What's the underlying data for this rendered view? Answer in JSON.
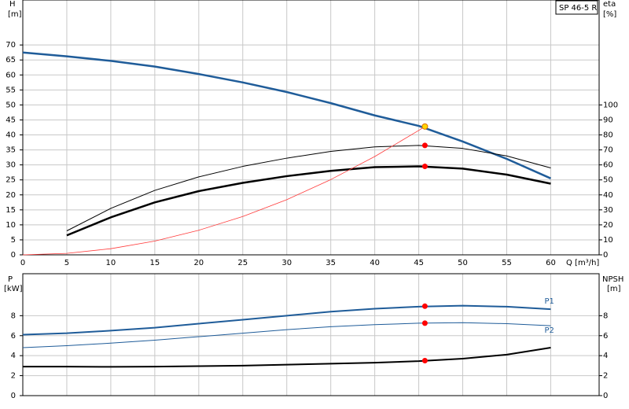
{
  "chart_data": [
    {
      "type": "line",
      "label_box": "SP 46-5 R",
      "y_label": "H",
      "y_unit": "[m]",
      "y2_label": "eta",
      "y2_unit": "[%]",
      "x_label": "Q [m³/h]",
      "xlim": [
        0,
        65.5
      ],
      "xticks": [
        0,
        5,
        10,
        15,
        20,
        25,
        30,
        35,
        40,
        45,
        50,
        55,
        60
      ],
      "ylim": [
        0,
        85
      ],
      "yticks": [
        0,
        5,
        10,
        15,
        20,
        25,
        30,
        35,
        40,
        45,
        50,
        55,
        60,
        65,
        70
      ],
      "y2lim": [
        0,
        170
      ],
      "y2ticks": [
        0,
        10,
        20,
        30,
        40,
        50,
        60,
        70,
        80,
        90,
        100
      ],
      "grid": true,
      "series": [
        {
          "color": "#1f5c99",
          "width": 2.5,
          "x": [
            0,
            5,
            10,
            15,
            20,
            25,
            30,
            35,
            40,
            45,
            50,
            55,
            60
          ],
          "values": [
            67.5,
            66.2,
            64.7,
            62.8,
            60.3,
            57.5,
            54.3,
            50.6,
            46.5,
            43,
            37.8,
            32,
            25.5
          ]
        },
        {
          "color": "#000000",
          "width": 1,
          "axis": "y2",
          "x": [
            5,
            10,
            15,
            20,
            25,
            30,
            35,
            40,
            45,
            50,
            55,
            60
          ],
          "values": [
            16,
            31,
            43,
            52,
            59,
            64.5,
            69,
            72,
            73,
            71,
            66,
            58
          ]
        },
        {
          "color": "#000000",
          "width": 2.5,
          "axis": "y2",
          "x": [
            5,
            10,
            15,
            20,
            25,
            30,
            35,
            40,
            45,
            50,
            55,
            60
          ],
          "values": [
            13,
            25,
            35,
            42.5,
            48,
            52.5,
            56,
            58.5,
            59,
            57.5,
            53.5,
            47.5
          ]
        },
        {
          "color": "#ff3b3b",
          "width": 0.8,
          "x": [
            0,
            5,
            10,
            15,
            20,
            25,
            30,
            35,
            40,
            45,
            45.7
          ],
          "values": [
            0,
            0.5,
            2.05,
            4.6,
            8.2,
            12.8,
            18.4,
            25.1,
            32.8,
            41.5,
            42.8
          ]
        },
        {
          "color": "#ffd700",
          "marker": true,
          "x": [
            45.7
          ],
          "values": [
            42.8
          ]
        },
        {
          "color": "#ff0000",
          "marker": true,
          "axis": "y2",
          "x": [
            45.7,
            45.7
          ],
          "values": [
            73,
            59
          ]
        }
      ]
    },
    {
      "type": "line",
      "y_label": "P",
      "y_unit": "[kW]",
      "y2_label": "NPSH",
      "y2_unit": "[m]",
      "xlim": [
        0,
        65.5
      ],
      "ylim": [
        0,
        12.2
      ],
      "yticks": [
        0,
        2,
        4,
        6,
        8
      ],
      "y2lim": [
        0,
        12.2
      ],
      "y2ticks": [
        0,
        2,
        4,
        6,
        8
      ],
      "grid": true,
      "series": [
        {
          "name": "P1",
          "color": "#1f5c99",
          "width": 2,
          "x": [
            0,
            5,
            10,
            15,
            20,
            25,
            30,
            35,
            40,
            45,
            50,
            55,
            60
          ],
          "values": [
            6.1,
            6.25,
            6.5,
            6.8,
            7.2,
            7.6,
            8.0,
            8.4,
            8.7,
            8.9,
            9.0,
            8.9,
            8.65
          ]
        },
        {
          "name": "P2",
          "color": "#1f5c99",
          "width": 1,
          "x": [
            0,
            5,
            10,
            15,
            20,
            25,
            30,
            35,
            40,
            45,
            50,
            55,
            60
          ],
          "values": [
            4.8,
            5.0,
            5.25,
            5.55,
            5.9,
            6.25,
            6.6,
            6.9,
            7.1,
            7.25,
            7.3,
            7.2,
            7.0
          ]
        },
        {
          "color": "#000000",
          "width": 2,
          "axis": "y2",
          "x": [
            0,
            5,
            10,
            15,
            20,
            25,
            30,
            35,
            40,
            45,
            50,
            55,
            60
          ],
          "values": [
            2.9,
            2.9,
            2.88,
            2.9,
            2.95,
            3.0,
            3.1,
            3.2,
            3.3,
            3.45,
            3.7,
            4.1,
            4.8
          ]
        },
        {
          "color": "#ff0000",
          "marker": true,
          "x": [
            45.7,
            45.7
          ],
          "values": [
            8.95,
            7.25
          ]
        },
        {
          "color": "#ff0000",
          "marker": true,
          "axis": "y2",
          "x": [
            45.7
          ],
          "values": [
            3.5
          ]
        }
      ]
    }
  ]
}
